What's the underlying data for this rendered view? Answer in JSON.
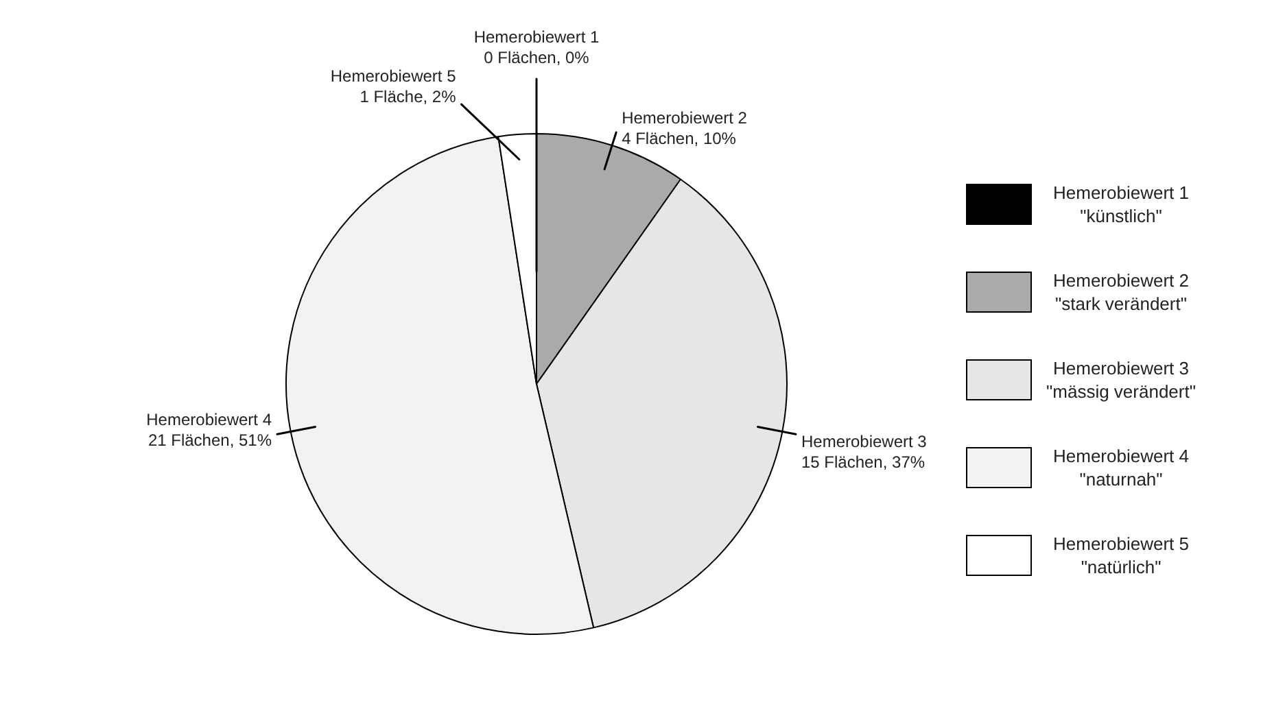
{
  "chart_data": {
    "type": "pie",
    "categories": [
      "Hemerobiewert 1 \"künstlich\"",
      "Hemerobiewert 2 \"stark verändert\"",
      "Hemerobiewert 3 \"mässig verändert\"",
      "Hemerobiewert 4 \"naturnah\"",
      "Hemerobiewert 5 \"natürlich\""
    ],
    "values": [
      0,
      4,
      15,
      21,
      1
    ],
    "colors": [
      "#000000",
      "#aaaaaa",
      "#e6e6e6",
      "#f2f2f2",
      "#ffffff"
    ],
    "value_labels": [
      "Hemerobiewert 1\n0 Flächen, 0%",
      "Hemerobiewert 2\n4 Flächen, 10%",
      "Hemerobiewert 3\n15 Flächen, 37%",
      "Hemerobiewert 4\n21 Flächen, 51%",
      "Hemerobiewert 5\n1 Fläche, 2%"
    ],
    "legend": "right"
  }
}
